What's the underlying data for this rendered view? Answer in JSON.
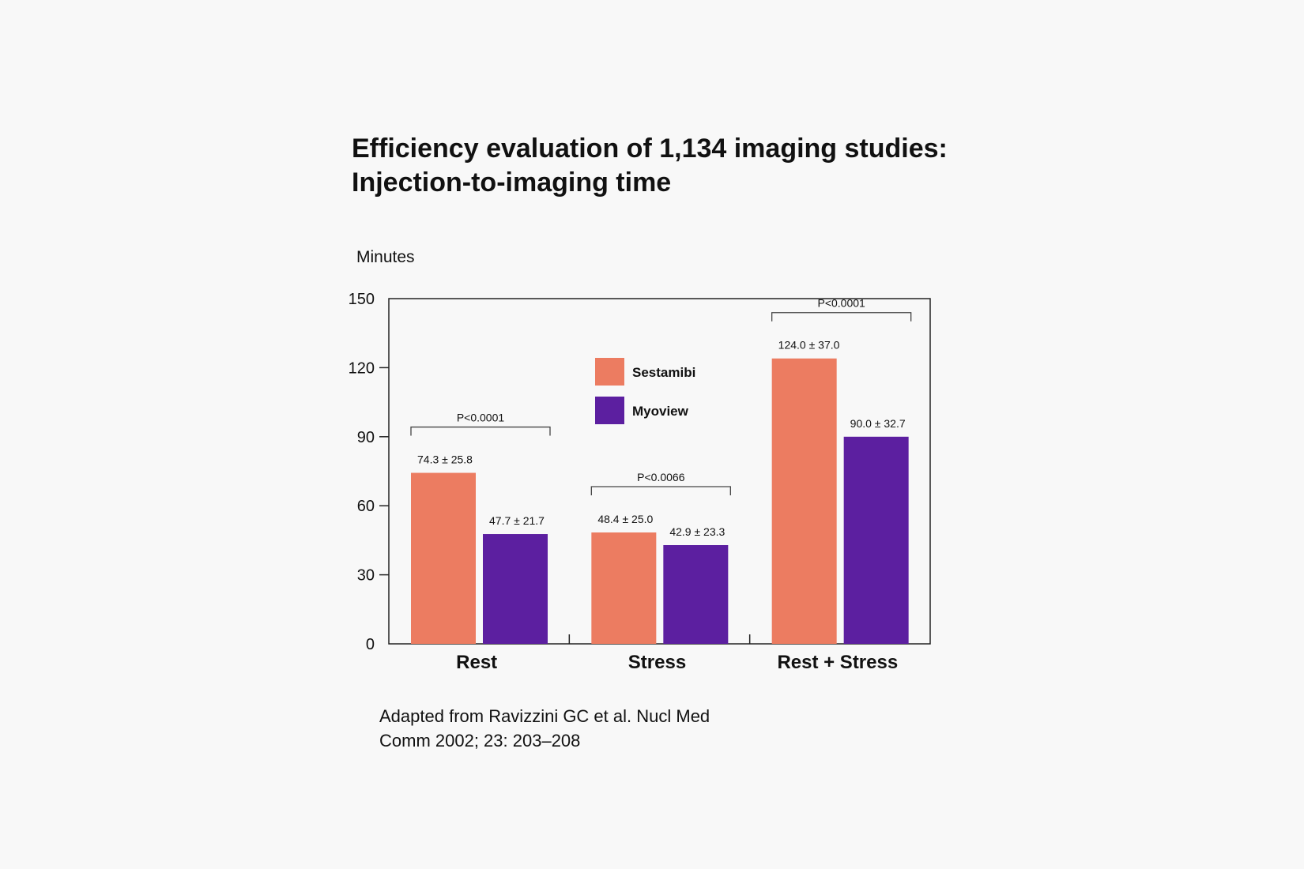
{
  "chart_data": {
    "type": "bar",
    "title": "Efficiency evaluation of 1,134 imaging studies:",
    "subtitle": "Injection-to-imaging time",
    "ylabel": "Minutes",
    "xlabel": "",
    "ylim": [
      0,
      150
    ],
    "yticks": [
      "0",
      "30",
      "60",
      "90",
      "120",
      "150"
    ],
    "grid": false,
    "legend_placement": "top-center",
    "categories": [
      "Rest",
      "Stress",
      "Rest + Stress"
    ],
    "series": [
      {
        "name": "Sestamibi",
        "color": "#ec7c61",
        "values": [
          74.3,
          48.4,
          124.0
        ],
        "labels": [
          "74.3 ± 25.8",
          "48.4 ± 25.0",
          "124.0 ± 37.0"
        ]
      },
      {
        "name": "Myoview",
        "color": "#5c1fa0",
        "values": [
          47.7,
          42.9,
          90.0
        ],
        "labels": [
          "47.7 ± 21.7",
          "42.9 ± 23.3",
          "90.0 ± 32.7"
        ]
      }
    ],
    "p_values": [
      "P<0.0001",
      "P<0.0066",
      "P<0.0001"
    ],
    "footnote_line1": "Adapted from Ravizzini GC et al. Nucl Med",
    "footnote_line2": "Comm 2002; 23: 203–208"
  }
}
